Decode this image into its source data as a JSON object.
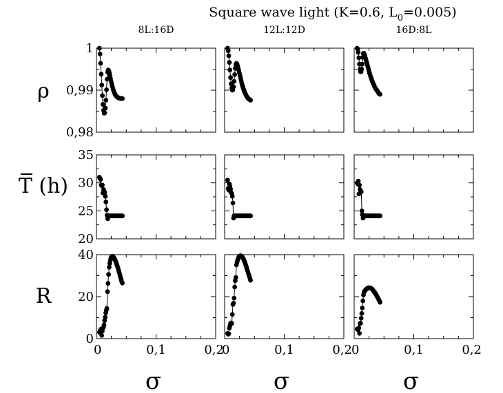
{
  "figure": {
    "title_main": "Square wave light (K=0.6, L",
    "title_sub": "0",
    "title_end": "=0.005)"
  },
  "chart_data": {
    "type": "scatter",
    "title": "Square wave light (K=0.6, L0=0.005)",
    "columns": [
      "8L:16D",
      "12L:12D",
      "16D:8L"
    ],
    "x_label": "σ",
    "x_ticks": [
      {
        "value": 0,
        "label": "0"
      },
      {
        "value": 0.1,
        "label": "0,1"
      },
      {
        "value": 0.2,
        "label": "0,2"
      }
    ],
    "xlim": [
      0,
      0.2
    ],
    "rows": [
      {
        "key": "rho",
        "label": "ρ",
        "ylim": [
          0.98,
          1.0
        ],
        "y_ticks": [
          {
            "value": 0.98,
            "label": "0,98"
          },
          {
            "value": 0.99,
            "label": "0,99"
          },
          {
            "value": 1.0,
            "label": "1"
          }
        ]
      },
      {
        "key": "T",
        "label": "T (h)",
        "ylim": [
          20,
          35
        ],
        "y_ticks": [
          {
            "value": 20,
            "label": "20"
          },
          {
            "value": 25,
            "label": "25"
          },
          {
            "value": 30,
            "label": "30"
          },
          {
            "value": 35,
            "label": "35"
          }
        ]
      },
      {
        "key": "R",
        "label": "R",
        "ylim": [
          0,
          40
        ],
        "y_ticks": [
          {
            "value": 0,
            "label": "0"
          },
          {
            "value": 20,
            "label": "20"
          },
          {
            "value": 40,
            "label": "40"
          }
        ]
      }
    ],
    "panels": [
      {
        "row": 0,
        "col": 0,
        "values": [
          1.0,
          0.9986,
          0.9964,
          0.9938,
          0.9912,
          0.9887,
          0.9866,
          0.9852,
          0.9845,
          0.9846,
          0.9857,
          0.9876,
          0.9901,
          0.9926,
          0.9943,
          0.9948,
          0.9946,
          0.9941,
          0.9934,
          0.9927,
          0.992,
          0.9914,
          0.9908,
          0.9903,
          0.9899,
          0.9895,
          0.9892,
          0.9889,
          0.9887,
          0.9885,
          0.9884,
          0.9883,
          0.9882,
          0.9881,
          0.9881,
          0.9881,
          0.988,
          0.988,
          0.988,
          0.988
        ]
      },
      {
        "row": 0,
        "col": 1,
        "values": [
          1.0,
          0.9994,
          0.9982,
          0.9966,
          0.9948,
          0.993,
          0.9915,
          0.9905,
          0.99,
          0.9901,
          0.9908,
          0.9921,
          0.9937,
          0.9952,
          0.9961,
          0.9964,
          0.9962,
          0.9958,
          0.9953,
          0.9947,
          0.9941,
          0.9935,
          0.9929,
          0.9923,
          0.9917,
          0.9912,
          0.9907,
          0.9903,
          0.9899,
          0.9895,
          0.9892,
          0.9889,
          0.9886,
          0.9884,
          0.9882,
          0.988,
          0.9879,
          0.9878,
          0.9877,
          0.9876
        ]
      },
      {
        "row": 0,
        "col": 2,
        "values": [
          1.0,
          0.9998,
          0.999,
          0.9977,
          0.9962,
          0.995,
          0.9944,
          0.9944,
          0.995,
          0.9962,
          0.9978,
          0.9987,
          0.9988,
          0.9985,
          0.9981,
          0.9976,
          0.9971,
          0.9966,
          0.9961,
          0.9956,
          0.9951,
          0.9946,
          0.9941,
          0.9937,
          0.9933,
          0.9929,
          0.9925,
          0.9921,
          0.9918,
          0.9915,
          0.9912,
          0.9909,
          0.9906,
          0.9904,
          0.9902,
          0.99,
          0.9898,
          0.9896,
          0.9894,
          0.9892,
          0.9891,
          0.989
        ]
      },
      {
        "row": 1,
        "col": 0,
        "values": [
          31.0,
          30.8,
          30.6,
          29.6,
          29.5,
          29.6,
          28.2,
          28.8,
          28.5,
          28.3,
          27.6,
          26.6,
          25.2,
          24.2,
          23.6,
          24.1,
          24.1,
          24.1,
          24.1,
          24.1,
          24.1,
          24.1,
          24.1,
          24.1,
          24.1,
          24.1,
          24.1,
          24.1,
          24.1,
          24.1,
          24.1,
          24.1,
          24.1,
          24.1,
          24.1,
          24.1,
          24.1,
          24.1,
          24.1,
          24.1
        ]
      },
      {
        "row": 1,
        "col": 1,
        "values": [
          30.5,
          29.0,
          28.7,
          29.8,
          29.4,
          28.9,
          28.3,
          28.1,
          27.6,
          26.4,
          23.7,
          24.1,
          24.1,
          24.1,
          24.1,
          24.1,
          24.1,
          24.1,
          24.1,
          24.1,
          24.1,
          24.1,
          24.1,
          24.1,
          24.1,
          24.1,
          24.1,
          24.1,
          24.1,
          24.1,
          24.1,
          24.1,
          24.1,
          24.1,
          24.1,
          24.1,
          24.1,
          24.1,
          24.1,
          24.1
        ]
      },
      {
        "row": 1,
        "col": 2,
        "values": [
          30.0,
          29.8,
          30.3,
          28.0,
          29.6,
          28.8,
          28.4,
          28.4,
          25.0,
          24.3,
          23.7,
          24.1,
          24.1,
          24.1,
          24.1,
          24.1,
          24.1,
          24.1,
          24.1,
          24.1,
          24.1,
          24.1,
          24.1,
          24.1,
          24.1,
          24.1,
          24.1,
          24.1,
          24.1,
          24.1,
          24.1,
          24.1,
          24.1,
          24.1,
          24.1,
          24.1,
          24.1,
          24.1,
          24.1,
          24.1
        ]
      },
      {
        "row": 2,
        "col": 0,
        "values": [
          3.0,
          3.5,
          4.1,
          4.6,
          1.5,
          3.6,
          5.0,
          5.4,
          6.5,
          8.6,
          10.2,
          12.3,
          13.5,
          14.4,
          22.4,
          26.3,
          30.6,
          34.0,
          35.8,
          37.4,
          38.4,
          39.0,
          39.2,
          39.2,
          39.0,
          38.7,
          38.2,
          37.6,
          37.0,
          36.3,
          35.5,
          34.7,
          33.8,
          32.9,
          31.9,
          31.0,
          30.0,
          29.0,
          28.0,
          27.0,
          26.5
        ]
      },
      {
        "row": 2,
        "col": 1,
        "values": [
          2.5,
          2.1,
          2.3,
          5.0,
          6.1,
          7.2,
          7.5,
          7.2,
          11.5,
          16.3,
          16.9,
          19.3,
          24.6,
          27.6,
          29.1,
          35.1,
          36.4,
          37.3,
          38.1,
          38.8,
          39.2,
          39.4,
          39.5,
          39.4,
          39.2,
          38.9,
          38.4,
          37.9,
          37.3,
          36.6,
          35.8,
          34.9,
          34.0,
          33.1,
          32.2,
          31.3,
          30.4,
          29.5,
          28.7,
          27.8
        ]
      },
      {
        "row": 2,
        "col": 2,
        "values": [
          4.6,
          4.3,
          4.8,
          5.1,
          2.5,
          7.2,
          7.3,
          9.7,
          12.0,
          14.6,
          18.0,
          20.8,
          22.1,
          22.6,
          23.0,
          23.3,
          23.6,
          23.8,
          24.0,
          24.1,
          24.2,
          24.2,
          24.2,
          24.1,
          24.0,
          23.8,
          23.6,
          23.3,
          23.0,
          22.6,
          22.2,
          21.8,
          21.4,
          21.0,
          20.5,
          20.0,
          19.5,
          19.0,
          18.4,
          17.9,
          17.3
        ]
      }
    ]
  }
}
